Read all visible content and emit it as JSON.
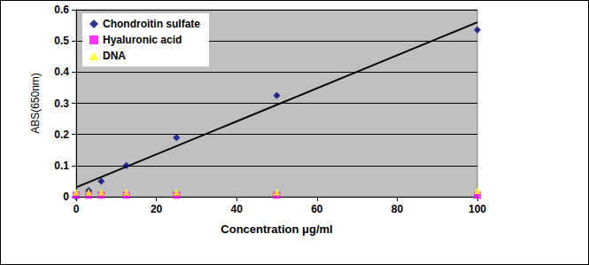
{
  "chart_data": {
    "type": "scatter",
    "x_label": "Concentration μg/ml",
    "y_label": "ABS(650nm)",
    "xlim": [
      0,
      100
    ],
    "xticks": [
      0,
      20,
      40,
      60,
      80,
      100
    ],
    "ylim": [
      0,
      0.6
    ],
    "yticks": [
      0,
      0.1,
      0.2,
      0.3,
      0.4,
      0.5,
      0.6
    ],
    "grid": true,
    "legend": "upper left",
    "series": [
      {
        "name": "Chondroitin sulfate",
        "color": "#000080",
        "marker": "diamond",
        "x": [
          0,
          3.125,
          6.25,
          12.5,
          25,
          50,
          100
        ],
        "values": [
          0.0,
          0.02,
          0.05,
          0.1,
          0.19,
          0.325,
          0.535
        ]
      },
      {
        "name": "Hyaluronic acid",
        "color": "#ff00ff",
        "marker": "square",
        "x": [
          0,
          3.125,
          6.25,
          12.5,
          25,
          50,
          100
        ],
        "values": [
          0.005,
          0.005,
          0.005,
          0.005,
          0.005,
          0.005,
          0.005
        ]
      },
      {
        "name": "DNA",
        "color": "#ffff00",
        "marker": "triangle",
        "x": [
          0,
          3.125,
          6.25,
          12.5,
          25,
          50,
          100
        ],
        "values": [
          0.015,
          0.015,
          0.015,
          0.015,
          0.015,
          0.015,
          0.02
        ]
      }
    ],
    "trend_line": {
      "color": "#000000",
      "x": [
        0,
        100
      ],
      "values": [
        0.03,
        0.56
      ]
    }
  }
}
